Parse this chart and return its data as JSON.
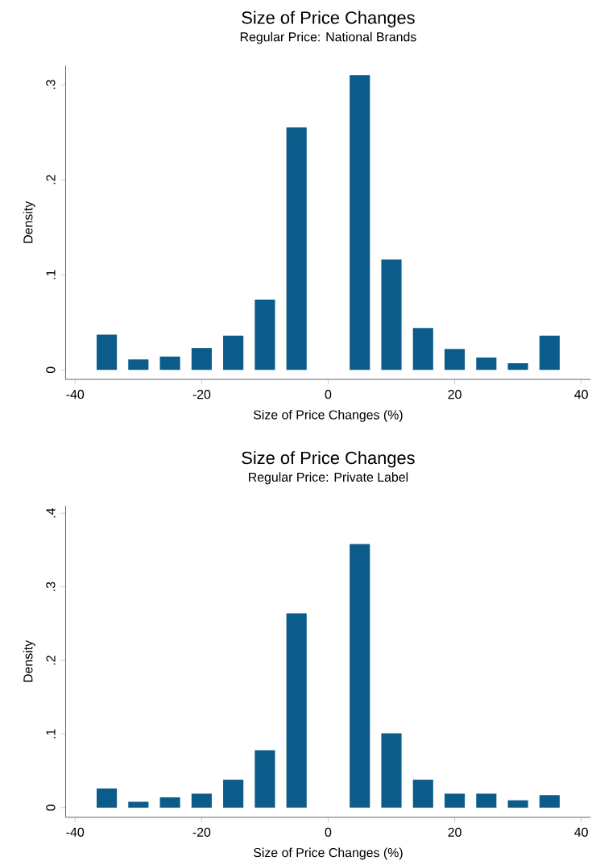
{
  "chart_data": [
    {
      "type": "bar",
      "title": "Size of Price Changes",
      "subtitle": "Regular Price: National Brands",
      "xlabel": "Size of Price Changes (%)",
      "ylabel": "Density",
      "x": [
        -35,
        -30,
        -25,
        -20,
        -15,
        -10,
        -5,
        5,
        10,
        15,
        20,
        25,
        30,
        35
      ],
      "values": [
        0.037,
        0.011,
        0.014,
        0.023,
        0.036,
        0.074,
        0.255,
        0.31,
        0.116,
        0.044,
        0.022,
        0.013,
        0.007,
        0.036
      ],
      "color": "#0b5c8a",
      "xlim": [
        -41.5,
        41.5
      ],
      "ylim": [
        -0.01,
        0.32
      ],
      "xticks": [
        -40,
        -20,
        0,
        20,
        40
      ],
      "yticks": [
        0,
        {
          "value": 0.1,
          "label": ".1"
        },
        {
          "value": 0.2,
          "label": ".2"
        },
        {
          "value": 0.3,
          "label": ".3"
        }
      ]
    },
    {
      "type": "bar",
      "title": "Size of Price Changes",
      "subtitle": "Regular Price: Private Label",
      "xlabel": "Size of Price Changes (%)",
      "ylabel": "Density",
      "x": [
        -35,
        -30,
        -25,
        -20,
        -15,
        -10,
        -5,
        5,
        10,
        15,
        20,
        25,
        30,
        35
      ],
      "values": [
        0.026,
        0.008,
        0.014,
        0.019,
        0.038,
        0.078,
        0.264,
        0.358,
        0.101,
        0.038,
        0.019,
        0.019,
        0.01,
        0.017
      ],
      "color": "#0b5c8a",
      "xlim": [
        -41.5,
        41.5
      ],
      "ylim": [
        -0.013,
        0.41
      ],
      "xticks": [
        -40,
        -20,
        0,
        20,
        40
      ],
      "yticks": [
        0,
        {
          "value": 0.1,
          "label": ".1"
        },
        {
          "value": 0.2,
          "label": ".2"
        },
        {
          "value": 0.3,
          "label": ".3"
        },
        {
          "value": 0.4,
          "label": ".4"
        }
      ]
    }
  ]
}
